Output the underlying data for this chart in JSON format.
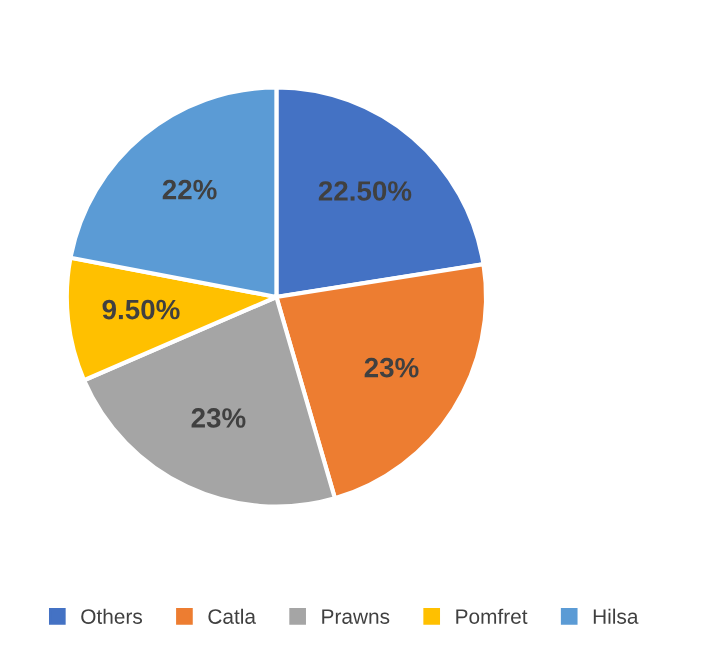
{
  "chart_data": {
    "type": "pie",
    "categories": [
      "Others",
      "Catla",
      "Prawns",
      "Pomfret",
      "Hilsa"
    ],
    "values": [
      22.5,
      23,
      23,
      9.5,
      22
    ],
    "colors": [
      "#4472c4",
      "#ed7d31",
      "#a5a5a5",
      "#ffc000",
      "#5b9bd5"
    ],
    "value_labels": [
      "22.50%",
      "23%",
      "23%",
      "9.50%",
      "22%"
    ],
    "legend": "bottom"
  }
}
